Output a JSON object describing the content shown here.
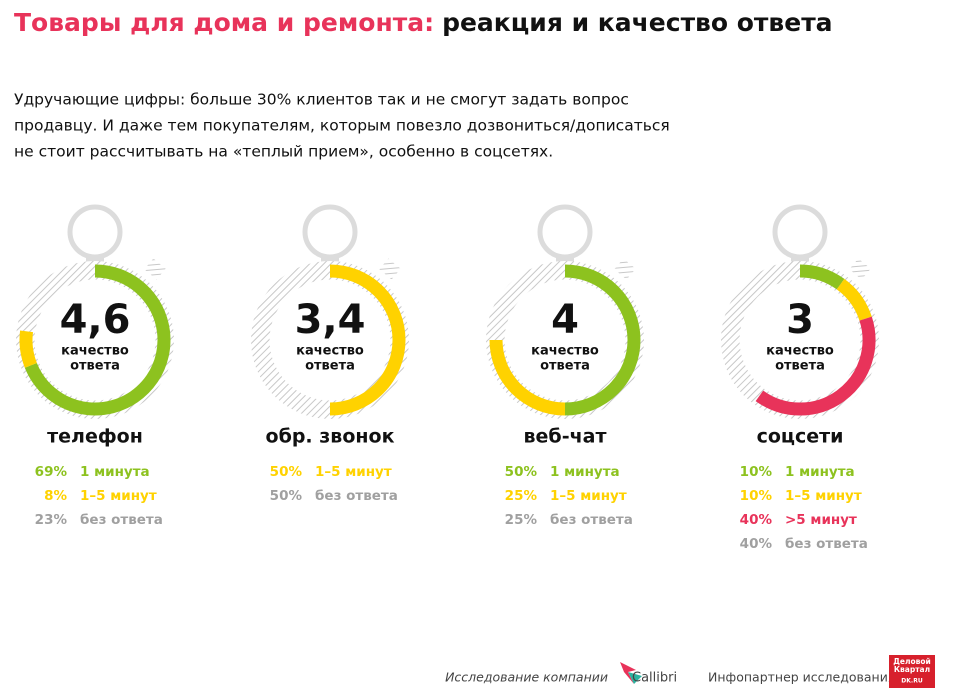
{
  "header": {
    "title_accent": "Товары для дома и ремонта:",
    "title_rest": "реакция и качество ответа",
    "intro": [
      "Удручающие цифры: больше 30% клиентов так и не смогут задать вопрос",
      "продавцу. И даже тем покупателям, которым повезло дозвониться/дописаться",
      "не стоит рассчитывать на «теплый прием», особенно в соцсетях."
    ]
  },
  "chart_data": [
    {
      "type": "donut",
      "title": "телефон",
      "score": "4,6",
      "score_label": [
        "качество",
        "ответа"
      ],
      "categories": [
        "1 минута",
        "1–5 минут",
        "без ответа"
      ],
      "values": [
        69,
        8,
        23
      ],
      "value_labels": [
        "69%",
        "8%",
        "23%"
      ],
      "colors": [
        "#8dc21f",
        "#ffd200",
        "#a0a0a0"
      ]
    },
    {
      "type": "donut",
      "title": "обр. звонок",
      "score": "3,4",
      "score_label": [
        "качество",
        "ответа"
      ],
      "categories": [
        "1–5 минут",
        "без ответа"
      ],
      "values": [
        50,
        50
      ],
      "value_labels": [
        "50%",
        "50%"
      ],
      "colors": [
        "#ffd200",
        "#a0a0a0"
      ]
    },
    {
      "type": "donut",
      "title": "веб-чат",
      "score": "4",
      "score_label": [
        "качество",
        "ответа"
      ],
      "categories": [
        "1 минута",
        "1–5 минут",
        "без ответа"
      ],
      "values": [
        50,
        25,
        25
      ],
      "value_labels": [
        "50%",
        "25%",
        "25%"
      ],
      "colors": [
        "#8dc21f",
        "#ffd200",
        "#a0a0a0"
      ]
    },
    {
      "type": "donut",
      "title": "соцсети",
      "score": "3",
      "score_label": [
        "качество",
        "ответа"
      ],
      "categories": [
        "1 минута",
        "1–5 минут",
        ">5 минут",
        "без ответа"
      ],
      "values": [
        10,
        10,
        40,
        40
      ],
      "value_labels": [
        "10%",
        "10%",
        "40%",
        "40%"
      ],
      "colors": [
        "#8dc21f",
        "#ffd200",
        "#e8335a",
        "#a0a0a0"
      ]
    }
  ],
  "footer": {
    "research_by": "Исследование компании",
    "company": "Callibri",
    "partner": "Инфопартнер исследования",
    "partner_logo": [
      "Деловой",
      "Квартал"
    ],
    "partner_site": "DK.RU"
  }
}
